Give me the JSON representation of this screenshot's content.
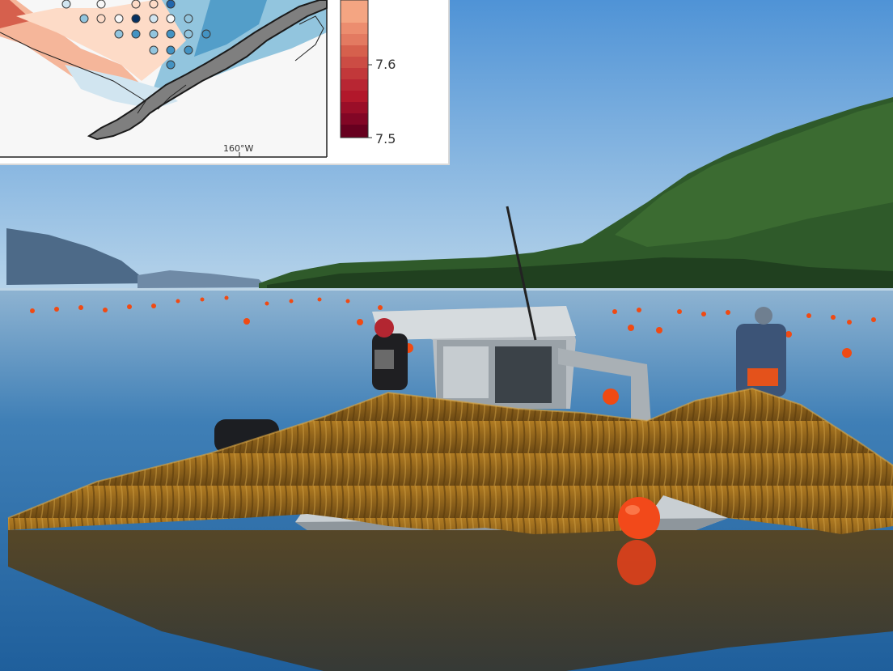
{
  "inset": {
    "colorbar_ticks": [
      "7.6",
      "7.5"
    ],
    "longitude_label": "160°W",
    "colors": [
      "#67001f",
      "#b2182b",
      "#d6604d",
      "#f4a582",
      "#fddbc7",
      "#f7f7f7",
      "#d1e5f0",
      "#92c5de",
      "#4393c3",
      "#2166ac",
      "#053061"
    ],
    "land_color": "#7f7f7f"
  },
  "photo": {
    "sky_color": "#69a6dd",
    "water_color": "#2f6fa8",
    "kelp_color": "#8a5e17",
    "buoy_color": "#f04a13"
  }
}
